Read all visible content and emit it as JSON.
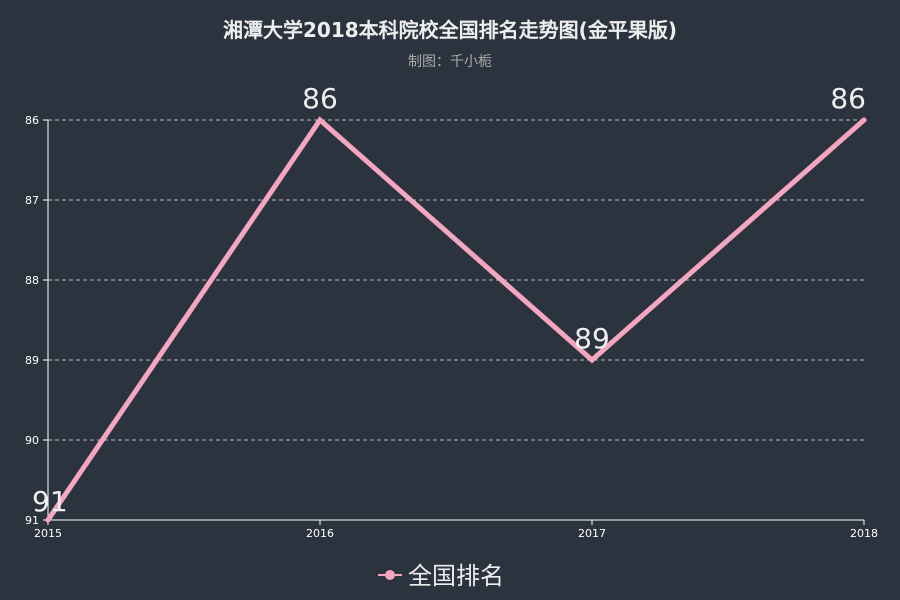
{
  "title": "湘潭大学2018本科院校全国排名走势图(金平果版)",
  "subtitle": "制图：千小栀",
  "colors": {
    "background": "#2b333e",
    "line": "#f4a6c1",
    "title": "#eeeeee",
    "subtitle": "#aaaaaa",
    "axis": "#ffffff",
    "grid": "#bbbbbb",
    "label": "#eeeeee"
  },
  "chart_data": {
    "type": "line",
    "title": "湘潭大学2018本科院校全国排名走势图(金平果版)",
    "subtitle": "制图：千小栀",
    "categories": [
      "2015",
      "2016",
      "2017",
      "2018"
    ],
    "series": [
      {
        "name": "全国排名",
        "values": [
          91,
          86,
          89,
          86
        ]
      }
    ],
    "y_ticks": [
      "86",
      "87",
      "88",
      "89",
      "90",
      "91"
    ],
    "ylim": [
      86,
      91
    ],
    "y_inverted": true,
    "grid": "horizontal dashed",
    "legend_position": "bottom-center",
    "data_labels": true
  }
}
